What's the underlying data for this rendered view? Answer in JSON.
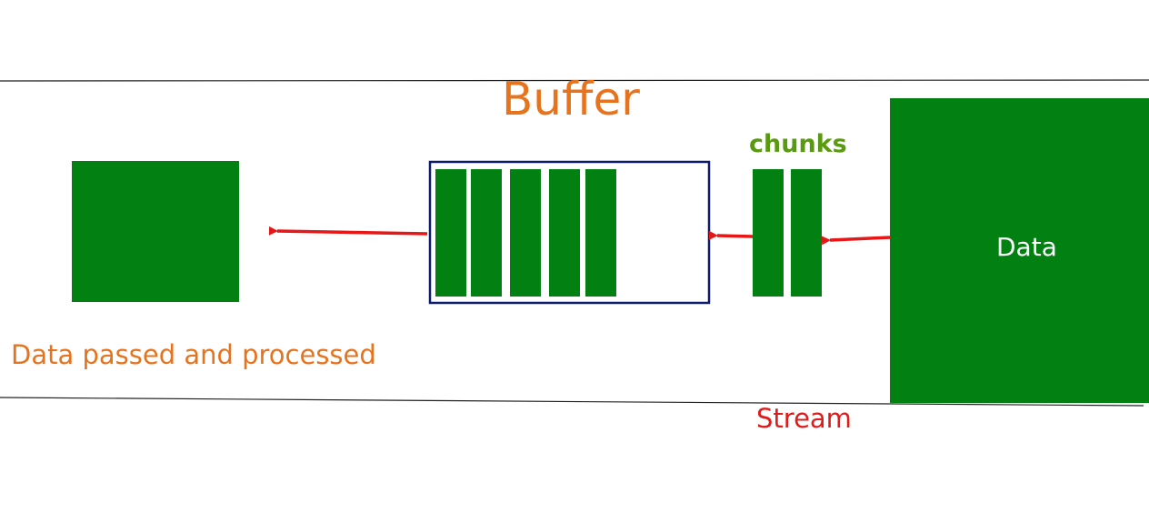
{
  "labels": {
    "buffer": "Buffer",
    "chunks": "chunks",
    "data_source": "Data",
    "output": "Data passed and processed",
    "stream": "Stream"
  },
  "colors": {
    "block_green": "#038012",
    "buffer_border": "#0d1a6e",
    "arrow_red": "#e81616",
    "orange_text": "#e8731d",
    "chunks_text": "#5a9a10",
    "stream_text": "#e01b1b",
    "line": "#222222"
  },
  "buffer": {
    "filled_chunks": 5
  },
  "stream": {
    "incoming_chunks": 2
  }
}
